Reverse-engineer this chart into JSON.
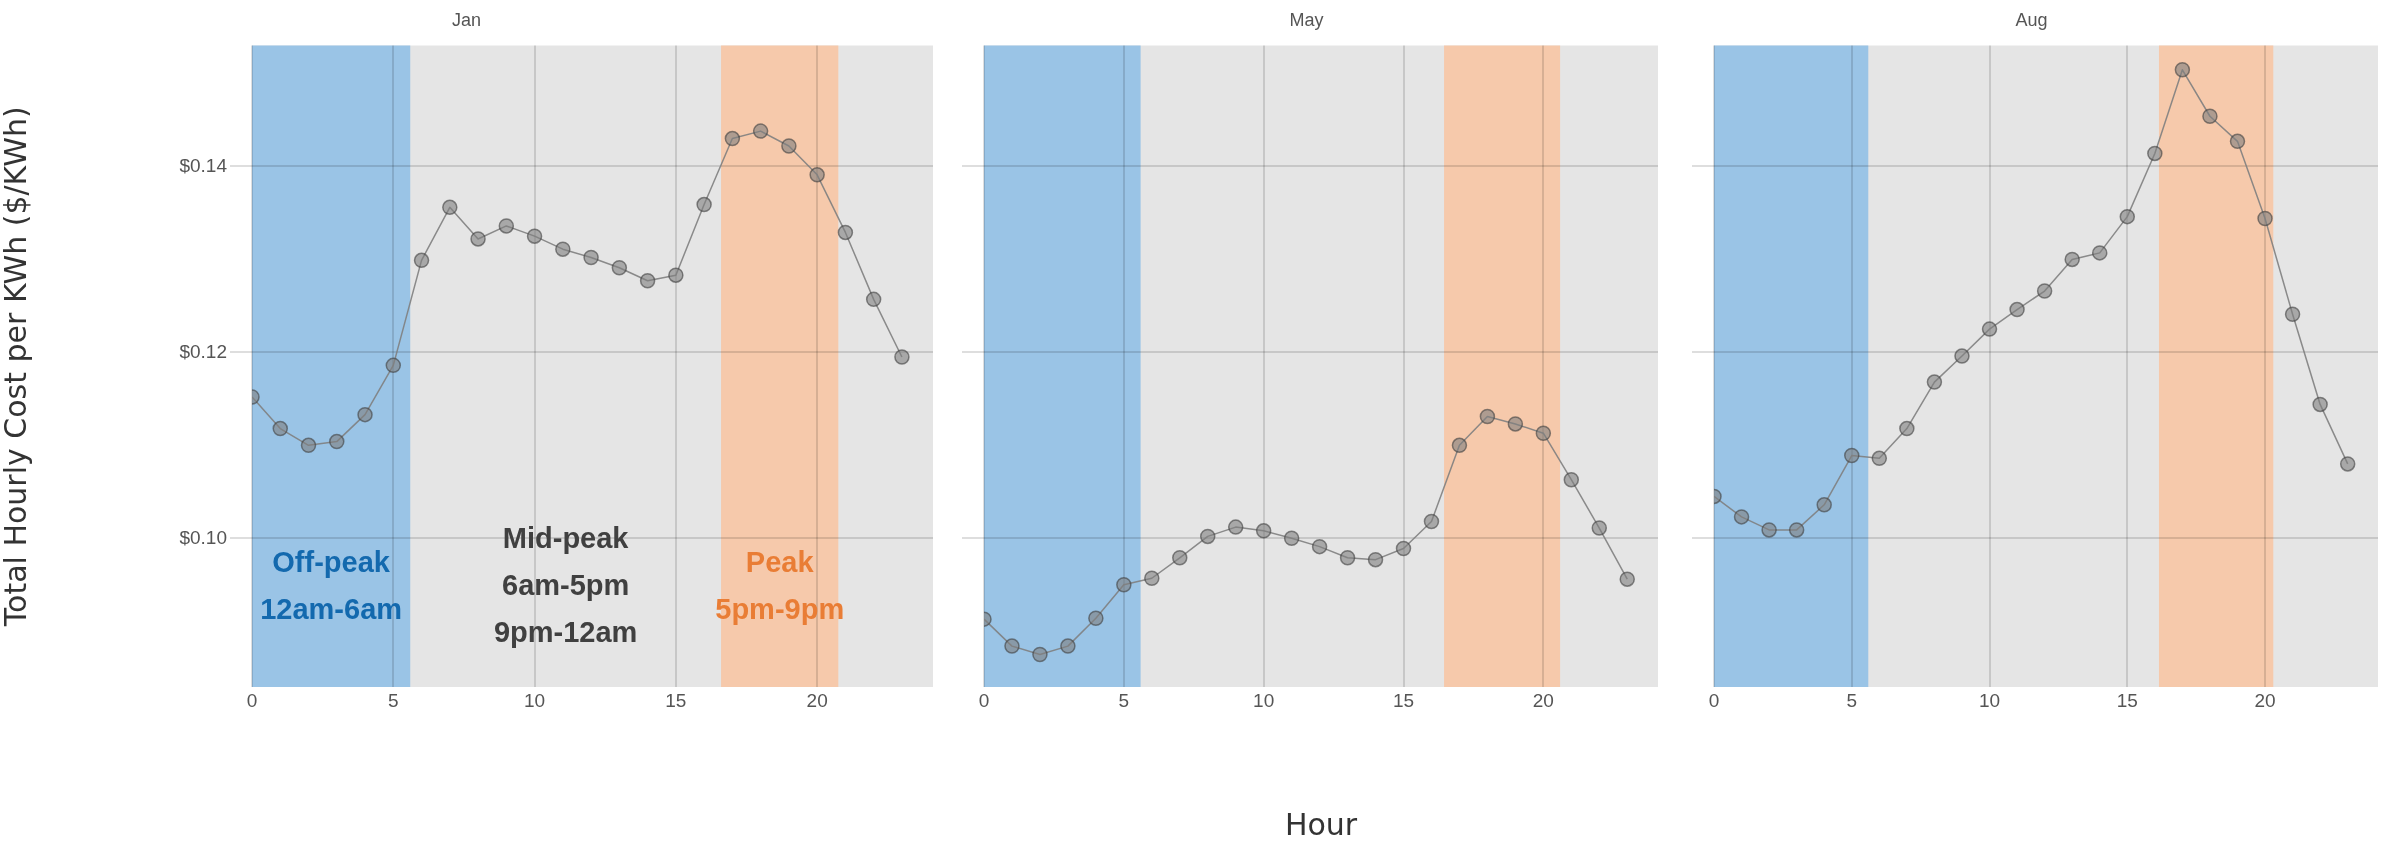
{
  "chart_data": [
    {
      "type": "line",
      "title": "Jan",
      "ylabel": "Total Hourly Cost per KWh ($/KWh)",
      "x": [
        0,
        1,
        2,
        3,
        4,
        5,
        6,
        7,
        8,
        9,
        10,
        11,
        12,
        13,
        14,
        15,
        16,
        17,
        18,
        19,
        20,
        21,
        22,
        23
      ],
      "series": [
        {
          "color": "#7f7f7f",
          "values": [
            0.1152,
            0.1118,
            0.11,
            0.1104,
            0.1133,
            0.1186,
            0.1299,
            0.1356,
            0.1322,
            0.1336,
            0.1325,
            0.1311,
            0.1302,
            0.1291,
            0.1277,
            0.1283,
            0.1359,
            0.143,
            0.1438,
            0.1422,
            0.1391,
            0.1329,
            0.1257,
            0.1195
          ]
        }
      ],
      "xlim": [
        0,
        24.1
      ],
      "xticks": [
        0,
        5,
        10,
        15,
        20
      ],
      "ylim": [
        0.084,
        0.153
      ],
      "yticks": [
        {
          "value": 0.1,
          "label": "$0.10"
        },
        {
          "value": 0.12,
          "label": "$0.12"
        },
        {
          "value": 0.14,
          "label": "$0.14"
        }
      ],
      "grid": true,
      "marker": "circle",
      "line_style": "solid",
      "bands": [
        {
          "axis": "x",
          "from": 0,
          "to": 5.6,
          "label": "Off-peak\n12am-6am",
          "color": "#9ac4e6"
        },
        {
          "axis": "x",
          "from": 16.6,
          "to": 20.75,
          "label": "Peak\n5pm-9pm",
          "color": "#f6c9ab"
        }
      ],
      "annotations": [
        "Mid-peak\n6am-5pm\n9pm-12am"
      ]
    },
    {
      "type": "line",
      "title": "May",
      "xlabel": "Hour",
      "x": [
        0,
        1,
        2,
        3,
        4,
        5,
        6,
        7,
        8,
        9,
        10,
        11,
        12,
        13,
        14,
        15,
        16,
        17,
        18,
        19,
        20,
        21,
        22,
        23
      ],
      "series": [
        {
          "color": "#7f7f7f",
          "values": [
            0.0913,
            0.0884,
            0.0875,
            0.0884,
            0.0914,
            0.095,
            0.0957,
            0.0979,
            0.1002,
            0.1012,
            0.1008,
            0.1,
            0.0991,
            0.0979,
            0.0977,
            0.0989,
            0.1018,
            0.11,
            0.1131,
            0.1123,
            0.1113,
            0.1063,
            0.1011,
            0.0956
          ]
        }
      ],
      "xlim": [
        0,
        24.1
      ],
      "xticks": [
        0,
        5,
        10,
        15,
        20
      ],
      "ylim": [
        0.084,
        0.153
      ],
      "yticks": [
        {
          "value": 0.1,
          "label": null
        },
        {
          "value": 0.12,
          "label": null
        },
        {
          "value": 0.14,
          "label": null
        }
      ],
      "grid": true,
      "marker": "circle",
      "line_style": "solid",
      "tick_labels": "x",
      "bands": [
        {
          "axis": "x",
          "from": 0,
          "to": 5.6,
          "color": "#9ac4e6"
        },
        {
          "axis": "x",
          "from": 16.45,
          "to": 20.6,
          "color": "#f6c9ab"
        }
      ]
    },
    {
      "type": "line",
      "title": "Aug",
      "x": [
        0,
        1,
        2,
        3,
        4,
        5,
        6,
        7,
        8,
        9,
        10,
        11,
        12,
        13,
        14,
        15,
        16,
        17,
        18,
        19,
        20,
        21,
        22,
        23
      ],
      "series": [
        {
          "color": "#7f7f7f",
          "values": [
            0.1045,
            0.1023,
            0.1009,
            0.1009,
            0.1036,
            0.1089,
            0.1086,
            0.1118,
            0.1168,
            0.1196,
            0.1225,
            0.1246,
            0.1266,
            0.13,
            0.1307,
            0.1346,
            0.1414,
            0.1504,
            0.1454,
            0.1427,
            0.1344,
            0.1241,
            0.1144,
            0.108
          ]
        }
      ],
      "xlim": [
        0,
        24.1
      ],
      "xticks": [
        0,
        5,
        10,
        15,
        20
      ],
      "ylim": [
        0.084,
        0.153
      ],
      "yticks": [
        {
          "value": 0.1,
          "label": null
        },
        {
          "value": 0.12,
          "label": null
        },
        {
          "value": 0.14,
          "label": null
        }
      ],
      "grid": true,
      "marker": "circle",
      "line_style": "solid",
      "tick_labels": "x",
      "bands": [
        {
          "axis": "x",
          "from": 0,
          "to": 5.6,
          "color": "#9ac4e6"
        },
        {
          "axis": "x",
          "from": 16.15,
          "to": 20.3,
          "color": "#f6c9ab"
        }
      ]
    }
  ]
}
